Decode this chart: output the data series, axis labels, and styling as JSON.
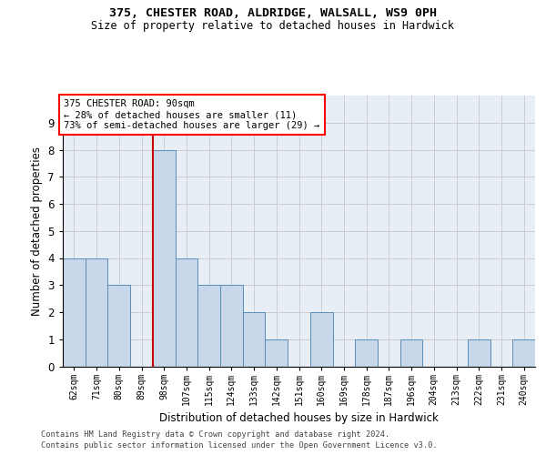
{
  "title1": "375, CHESTER ROAD, ALDRIDGE, WALSALL, WS9 0PH",
  "title2": "Size of property relative to detached houses in Hardwick",
  "xlabel": "Distribution of detached houses by size in Hardwick",
  "ylabel": "Number of detached properties",
  "categories": [
    "62sqm",
    "71sqm",
    "80sqm",
    "89sqm",
    "98sqm",
    "107sqm",
    "115sqm",
    "124sqm",
    "133sqm",
    "142sqm",
    "151sqm",
    "160sqm",
    "169sqm",
    "178sqm",
    "187sqm",
    "196sqm",
    "204sqm",
    "213sqm",
    "222sqm",
    "231sqm",
    "240sqm"
  ],
  "values": [
    4,
    4,
    3,
    0,
    8,
    4,
    3,
    3,
    2,
    1,
    0,
    2,
    0,
    1,
    0,
    1,
    0,
    0,
    1,
    0,
    1
  ],
  "bar_color": "#c8d8ea",
  "bar_edge_color": "#5b8db8",
  "red_line_x": 3.5,
  "annotation_title": "375 CHESTER ROAD: 90sqm",
  "annotation_line1": "← 28% of detached houses are smaller (11)",
  "annotation_line2": "73% of semi-detached houses are larger (29) →",
  "red_line_color": "#cc0000",
  "ylim": [
    0,
    10
  ],
  "yticks": [
    0,
    1,
    2,
    3,
    4,
    5,
    6,
    7,
    8,
    9
  ],
  "grid_color": "#cccccc",
  "background_color": "#e8eef6",
  "footer1": "Contains HM Land Registry data © Crown copyright and database right 2024.",
  "footer2": "Contains public sector information licensed under the Open Government Licence v3.0."
}
